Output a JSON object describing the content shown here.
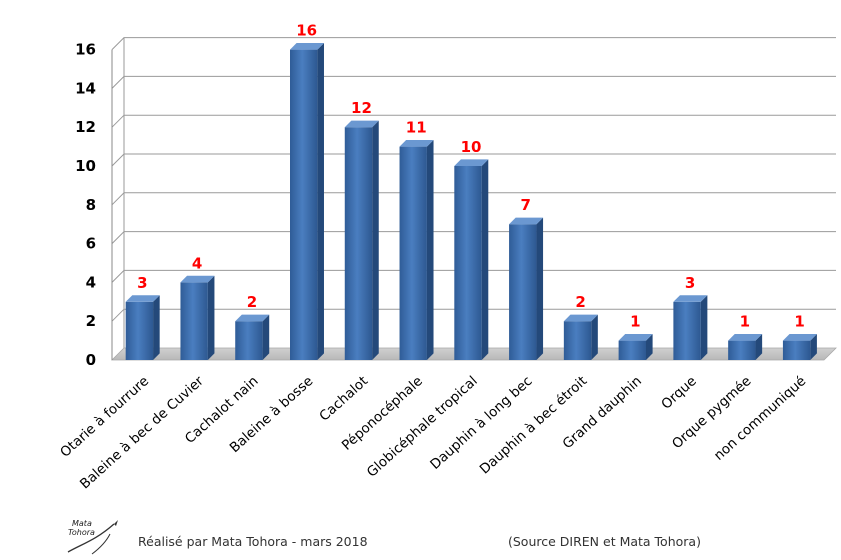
{
  "chart_data": {
    "type": "bar",
    "categories": [
      "Otarie à fourrure",
      "Baleine à bec de Cuvier",
      "Cachalot nain",
      "Baleine à bosse",
      "Cachalot",
      "Péponocéphale",
      "Globicéphale tropical",
      "Dauphin à long bec",
      "Dauphin à bec étroit",
      "Grand dauphin",
      "Orque",
      "Orque pygmée",
      "non communiqué"
    ],
    "values": [
      3,
      4,
      2,
      16,
      12,
      11,
      10,
      7,
      2,
      1,
      3,
      1,
      1
    ],
    "ylim": [
      0,
      16
    ],
    "yticks": [
      0,
      2,
      4,
      6,
      8,
      10,
      12,
      14,
      16
    ],
    "grid": true,
    "bar_color": "#3a6aa8",
    "label_color": "#ff0000"
  },
  "footer": {
    "credit": "Réalisé par Mata Tohora - mars 2018",
    "source": "(Source DIREN et Mata Tohora)"
  },
  "logo": {
    "text_line1": "Mata",
    "text_line2": "Tohora"
  }
}
